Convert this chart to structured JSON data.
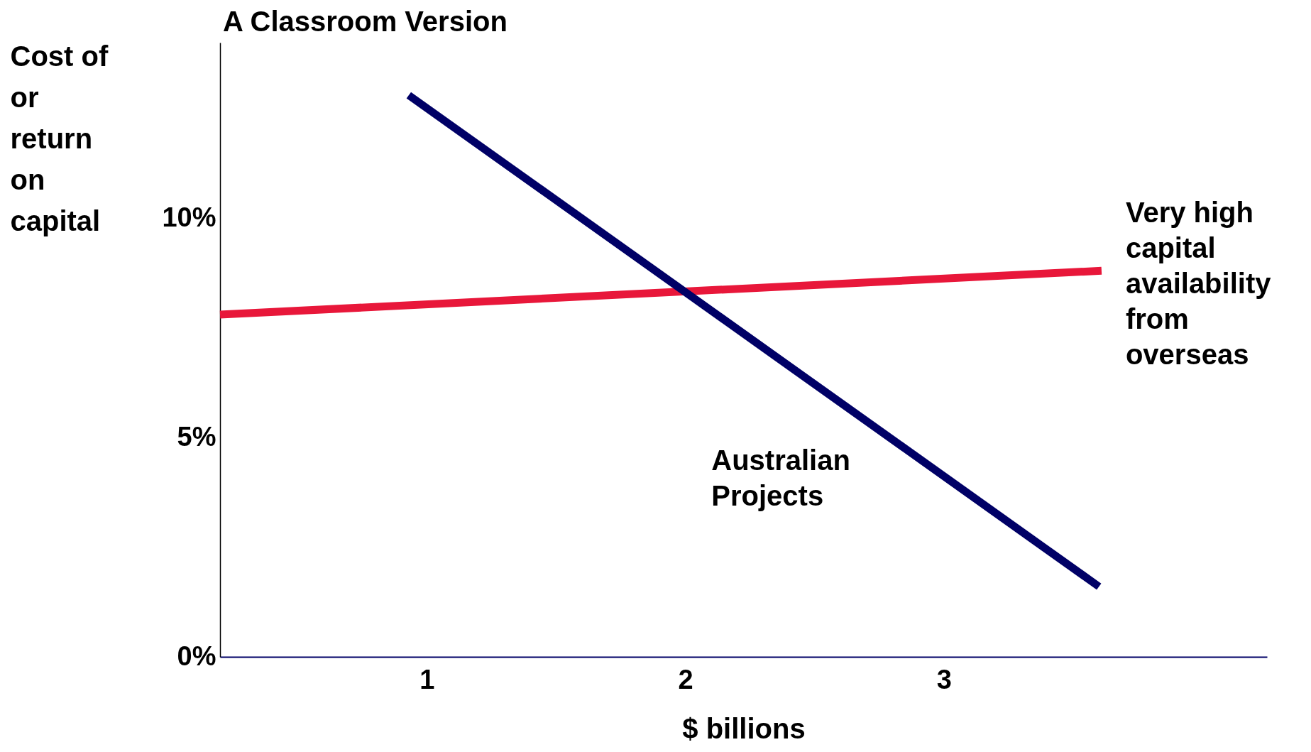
{
  "chart_data": {
    "type": "line",
    "title": "A Classroom Version",
    "xlabel": "$ billions",
    "ylabel": "Cost of or return on capital",
    "xlim": [
      0.2,
      4.25
    ],
    "xticks": [
      1,
      2,
      3
    ],
    "ylim": [
      0,
      14
    ],
    "yticks": [
      {
        "value": 0,
        "label": "0%"
      },
      {
        "value": 5,
        "label": "5%"
      },
      {
        "value": 10,
        "label": "10%"
      }
    ],
    "series": [
      {
        "name": "Very high capital availability from overseas",
        "color": "#e8173a",
        "x": [
          0.2,
          3.61
        ],
        "values": [
          7.8,
          8.8
        ]
      },
      {
        "name": "Australian Projects",
        "color": "#000066",
        "x": [
          0.93,
          3.6
        ],
        "values": [
          12.8,
          1.6
        ]
      }
    ],
    "grid": false,
    "legend": false,
    "marker": "none",
    "line_style": "solid"
  }
}
